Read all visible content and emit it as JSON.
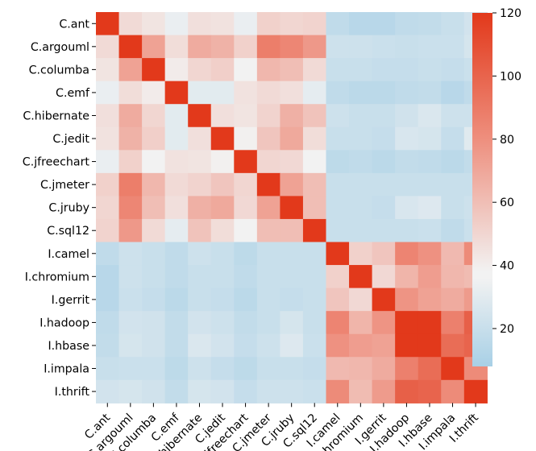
{
  "chart_data": {
    "type": "heatmap",
    "title": "",
    "xlabel": "",
    "ylabel": "",
    "row_labels": [
      "C.ant",
      "C.argouml",
      "C.columba",
      "C.emf",
      "C.hibernate",
      "C.jedit",
      "C.jfreechart",
      "C.jmeter",
      "C.jruby",
      "C.sql12",
      "I.camel",
      "I.chromium",
      "I.gerrit",
      "I.hadoop",
      "I.hbase",
      "I.impala",
      "I.thrift"
    ],
    "col_labels": [
      "C.ant",
      "C.argouml",
      "C.columba",
      "C.emf",
      "C.hibernate",
      "C.jedit",
      "C.jfreechart",
      "C.jmeter",
      "C.jruby",
      "C.sql12",
      "I.camel",
      "I.chromium",
      "I.gerrit",
      "I.hadoop",
      "I.hbase",
      "I.impala",
      "I.thrift"
    ],
    "values": [
      [
        120,
        48,
        44,
        33,
        46,
        45,
        33,
        52,
        50,
        51,
        17,
        14,
        14,
        17,
        18,
        20,
        24
      ],
      [
        48,
        120,
        72,
        47,
        68,
        65,
        52,
        88,
        84,
        76,
        22,
        22,
        21,
        20,
        21,
        21,
        25
      ],
      [
        44,
        72,
        120,
        41,
        50,
        53,
        38,
        63,
        60,
        48,
        20,
        20,
        19,
        19,
        20,
        19,
        21
      ],
      [
        33,
        47,
        41,
        120,
        30,
        30,
        45,
        48,
        46,
        31,
        17,
        15,
        15,
        17,
        18,
        14,
        17
      ],
      [
        46,
        68,
        50,
        30,
        120,
        46,
        44,
        51,
        66,
        58,
        22,
        20,
        20,
        23,
        27,
        22,
        22
      ],
      [
        45,
        65,
        53,
        30,
        46,
        120,
        39,
        57,
        69,
        47,
        20,
        20,
        19,
        26,
        25,
        19,
        29
      ],
      [
        33,
        52,
        38,
        45,
        44,
        39,
        120,
        50,
        49,
        38,
        16,
        17,
        15,
        18,
        17,
        15,
        18
      ],
      [
        52,
        88,
        63,
        48,
        51,
        57,
        50,
        120,
        72,
        60,
        20,
        20,
        20,
        20,
        20,
        20,
        20
      ],
      [
        50,
        84,
        60,
        46,
        66,
        69,
        49,
        72,
        120,
        60,
        20,
        20,
        19,
        26,
        28,
        20,
        22
      ],
      [
        51,
        76,
        48,
        31,
        58,
        47,
        38,
        60,
        60,
        120,
        20,
        20,
        20,
        20,
        21,
        17,
        21
      ],
      [
        17,
        22,
        20,
        17,
        22,
        20,
        16,
        20,
        20,
        20,
        120,
        52,
        57,
        85,
        79,
        62,
        82
      ],
      [
        14,
        22,
        20,
        17,
        20,
        20,
        17,
        20,
        20,
        20,
        52,
        120,
        49,
        64,
        74,
        63,
        61
      ],
      [
        14,
        21,
        19,
        15,
        20,
        19,
        15,
        20,
        19,
        20,
        57,
        49,
        120,
        78,
        72,
        68,
        75
      ],
      [
        17,
        24,
        23,
        18,
        24,
        22,
        18,
        20,
        25,
        20,
        85,
        64,
        78,
        120,
        120,
        87,
        102
      ],
      [
        18,
        25,
        23,
        18,
        27,
        24,
        19,
        22,
        28,
        21,
        79,
        74,
        72,
        120,
        120,
        96,
        100
      ],
      [
        20,
        21,
        21,
        16,
        22,
        19,
        16,
        20,
        20,
        19,
        62,
        63,
        68,
        87,
        96,
        120,
        82
      ],
      [
        24,
        25,
        23,
        18,
        25,
        24,
        19,
        22,
        22,
        21,
        82,
        61,
        75,
        102,
        100,
        82,
        120
      ]
    ],
    "colorbar": {
      "min": 8,
      "max": 120,
      "ticks": [
        20,
        40,
        60,
        80,
        100,
        120
      ],
      "tick_labels": [
        "20",
        "40",
        "60",
        "80",
        "100",
        "120"
      ],
      "stops": [
        {
          "v": 8,
          "color": "#A8D0E6"
        },
        {
          "v": 36,
          "color": "#F2F2F2"
        },
        {
          "v": 38,
          "color": "#F2F2F2"
        },
        {
          "v": 80,
          "color": "#EE8F7E"
        },
        {
          "v": 120,
          "color": "#E2391B"
        }
      ]
    }
  }
}
